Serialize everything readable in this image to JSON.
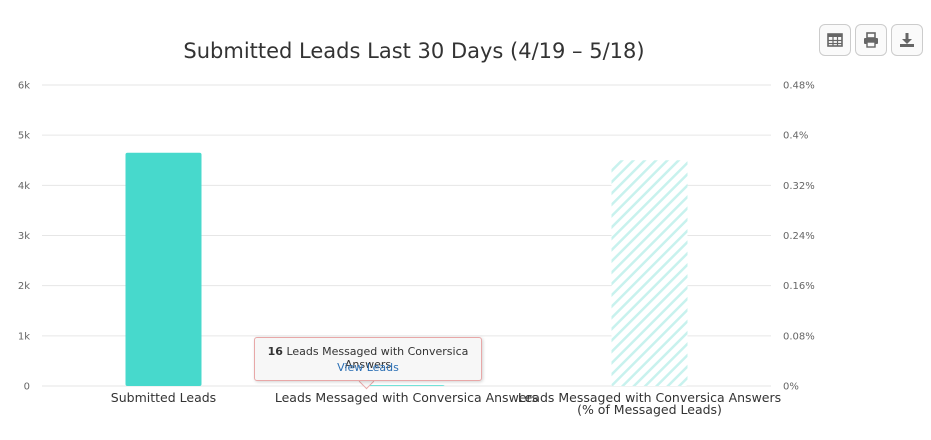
{
  "toolbar": {
    "table_icon": "table-icon",
    "print_icon": "print-icon",
    "download_icon": "download-icon"
  },
  "tooltip": {
    "count": "16",
    "text": "Leads Messaged with Conversica Answers",
    "link": "View Leads"
  },
  "colors": {
    "bar_primary": "#47d9cc",
    "bar_hatched": "#c8f2ee"
  },
  "chart_data": {
    "type": "bar",
    "title": "Submitted Leads Last 30 Days (4/19 – 5/18)",
    "categories": [
      [
        "Submitted Leads"
      ],
      [
        "Leads Messaged with Conversica Answers"
      ],
      [
        "Leads Messaged with Conversica Answers",
        "(% of Messaged Leads)"
      ]
    ],
    "y_left": {
      "ticks": [
        "0",
        "1k",
        "2k",
        "3k",
        "4k",
        "5k",
        "6k"
      ],
      "ylim": [
        0,
        6000
      ]
    },
    "y_right": {
      "ticks": [
        "0%",
        "0.08%",
        "0.16%",
        "0.24%",
        "0.32%",
        "0.4%",
        "0.48%"
      ],
      "ylim": [
        0,
        0.48
      ]
    },
    "series": [
      {
        "category_index": 0,
        "axis": "left",
        "value": 4650,
        "pattern": "solid"
      },
      {
        "category_index": 1,
        "axis": "left",
        "value": 16,
        "pattern": "solid"
      },
      {
        "category_index": 2,
        "axis": "right",
        "value": 0.36,
        "pattern": "hatched"
      }
    ],
    "grid": true,
    "legend": "none"
  }
}
